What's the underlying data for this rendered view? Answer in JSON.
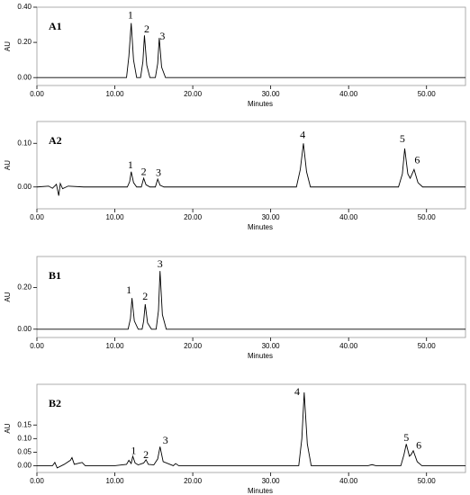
{
  "chart_data": [
    {
      "type": "line",
      "panel_label": "A1",
      "xlabel": "Minutes",
      "ylabel": "AU",
      "color": "#000000",
      "xlim": [
        0,
        55
      ],
      "ylim": [
        -0.045,
        0.4
      ],
      "xticks": [
        {
          "value": 0,
          "label": "0.00"
        },
        {
          "value": 10,
          "label": "10.00"
        },
        {
          "value": 20,
          "label": "20.00"
        },
        {
          "value": 30,
          "label": "30.00"
        },
        {
          "value": 40,
          "label": "40.00"
        },
        {
          "value": 50,
          "label": "50.00"
        }
      ],
      "yticks": [
        {
          "value": 0,
          "label": "0.00"
        },
        {
          "value": 0.2,
          "label": "0.20"
        },
        {
          "value": 0.4,
          "label": "0.40"
        }
      ],
      "x": [
        0,
        11.5,
        11.8,
        12.1,
        12.4,
        12.8,
        13.3,
        13.6,
        13.8,
        14.1,
        14.5,
        15.2,
        15.5,
        15.7,
        16.0,
        16.5,
        55
      ],
      "values": [
        0,
        0,
        0.12,
        0.31,
        0.1,
        0,
        0,
        0.09,
        0.24,
        0.07,
        0,
        0,
        0.08,
        0.225,
        0.06,
        0,
        0
      ],
      "annotations": [
        {
          "text": "1",
          "x": 12.0,
          "y": 0.35
        },
        {
          "text": "2",
          "x": 14.1,
          "y": 0.27
        },
        {
          "text": "3",
          "x": 16.1,
          "y": 0.23
        }
      ]
    },
    {
      "type": "line",
      "panel_label": "A2",
      "xlabel": "Minutes",
      "ylabel": "AU",
      "color": "#000000",
      "xlim": [
        0,
        55
      ],
      "ylim": [
        -0.05,
        0.15
      ],
      "xticks": [
        {
          "value": 0,
          "label": "0.00"
        },
        {
          "value": 10,
          "label": "10.00"
        },
        {
          "value": 20,
          "label": "20.00"
        },
        {
          "value": 30,
          "label": "30.00"
        },
        {
          "value": 40,
          "label": "40.00"
        },
        {
          "value": 50,
          "label": "50.00"
        }
      ],
      "yticks": [
        {
          "value": 0,
          "label": "0.00"
        },
        {
          "value": 0.1,
          "label": "0.10"
        }
      ],
      "x": [
        0,
        1.5,
        2.0,
        2.5,
        2.8,
        3.0,
        3.3,
        4,
        6,
        11.6,
        11.9,
        12.1,
        12.4,
        12.8,
        13.4,
        13.7,
        14.0,
        14.5,
        15.2,
        15.5,
        15.8,
        16.3,
        19,
        33.3,
        33.8,
        34.2,
        34.6,
        35.1,
        46.4,
        46.9,
        47.2,
        47.6,
        47.9,
        48.4,
        48.9,
        49.5,
        55
      ],
      "values": [
        0,
        0.002,
        -0.003,
        0.006,
        -0.02,
        0.008,
        -0.004,
        0.002,
        0,
        0,
        0.012,
        0.035,
        0.01,
        0,
        0,
        0.02,
        0.005,
        0,
        0,
        0.018,
        0.004,
        0,
        0,
        0,
        0.04,
        0.1,
        0.035,
        0,
        0,
        0.03,
        0.088,
        0.03,
        0.02,
        0.04,
        0.01,
        0,
        0
      ],
      "annotations": [
        {
          "text": "1",
          "x": 12.0,
          "y": 0.048
        },
        {
          "text": "2",
          "x": 13.7,
          "y": 0.033
        },
        {
          "text": "3",
          "x": 15.6,
          "y": 0.031
        },
        {
          "text": "4",
          "x": 34.1,
          "y": 0.118
        },
        {
          "text": "5",
          "x": 46.9,
          "y": 0.108
        },
        {
          "text": "6",
          "x": 48.8,
          "y": 0.06
        }
      ]
    },
    {
      "type": "line",
      "panel_label": "B1",
      "xlabel": "Minutes",
      "ylabel": "AU",
      "color": "#000000",
      "xlim": [
        0,
        55
      ],
      "ylim": [
        -0.04,
        0.35
      ],
      "xticks": [
        {
          "value": 0,
          "label": "0.00"
        },
        {
          "value": 10,
          "label": "10.00"
        },
        {
          "value": 20,
          "label": "20.00"
        },
        {
          "value": 30,
          "label": "30.00"
        },
        {
          "value": 40,
          "label": "40.00"
        },
        {
          "value": 50,
          "label": "50.00"
        }
      ],
      "yticks": [
        {
          "value": 0,
          "label": "0.00"
        },
        {
          "value": 0.2,
          "label": "0.20"
        }
      ],
      "x": [
        0,
        11.7,
        12.0,
        12.2,
        12.5,
        13.0,
        13.5,
        13.7,
        13.9,
        14.2,
        14.7,
        15.3,
        15.6,
        15.8,
        16.1,
        16.6,
        55
      ],
      "values": [
        0,
        0,
        0.05,
        0.15,
        0.04,
        0,
        0,
        0.04,
        0.12,
        0.03,
        0,
        0,
        0.09,
        0.28,
        0.07,
        0,
        0
      ],
      "annotations": [
        {
          "text": "1",
          "x": 11.8,
          "y": 0.185
        },
        {
          "text": "2",
          "x": 13.9,
          "y": 0.155
        },
        {
          "text": "3",
          "x": 15.8,
          "y": 0.31
        }
      ]
    },
    {
      "type": "line",
      "panel_label": "B2",
      "xlabel": "Minutes",
      "ylabel": "AU",
      "color": "#000000",
      "xlim": [
        0,
        55
      ],
      "ylim": [
        -0.025,
        0.3
      ],
      "xticks": [
        {
          "value": 0,
          "label": "0.00"
        },
        {
          "value": 10,
          "label": "10.00"
        },
        {
          "value": 20,
          "label": "20.00"
        },
        {
          "value": 30,
          "label": "30.00"
        },
        {
          "value": 40,
          "label": "40.00"
        },
        {
          "value": 50,
          "label": "50.00"
        }
      ],
      "yticks": [
        {
          "value": 0,
          "label": "0.00"
        },
        {
          "value": 0.05,
          "label": "0.05"
        },
        {
          "value": 0.1,
          "label": "0.10"
        },
        {
          "value": 0.15,
          "label": "0.15"
        }
      ],
      "x": [
        0,
        2,
        2.3,
        2.6,
        3.5,
        4.3,
        4.5,
        4.8,
        5.5,
        5.8,
        6.2,
        10,
        11.5,
        11.8,
        12.1,
        12.3,
        12.6,
        13,
        13.7,
        14.0,
        14.3,
        15.0,
        15.5,
        15.8,
        16.2,
        17.5,
        17.8,
        18.2,
        33.6,
        34.0,
        34.3,
        34.7,
        35.2,
        42.5,
        43,
        43.5,
        46.7,
        47.1,
        47.4,
        47.8,
        48.0,
        48.3,
        48.8,
        49.4,
        55
      ],
      "values": [
        0,
        0,
        0.012,
        -0.008,
        0.005,
        0.02,
        0.03,
        0.005,
        0.01,
        0.012,
        0,
        0,
        0.005,
        0.02,
        0.008,
        0.035,
        0.01,
        0.003,
        0.01,
        0.022,
        0.005,
        0.003,
        0.025,
        0.07,
        0.015,
        0,
        0.008,
        0,
        0,
        0.1,
        0.27,
        0.08,
        0,
        0,
        0.004,
        0,
        0,
        0.04,
        0.08,
        0.035,
        0.04,
        0.055,
        0.015,
        0,
        0
      ],
      "annotations": [
        {
          "text": "1",
          "x": 12.4,
          "y": 0.052
        },
        {
          "text": "2",
          "x": 14.0,
          "y": 0.037
        },
        {
          "text": "3",
          "x": 16.5,
          "y": 0.09
        },
        {
          "text": "4",
          "x": 33.4,
          "y": 0.27
        },
        {
          "text": "5",
          "x": 47.4,
          "y": 0.1
        },
        {
          "text": "6",
          "x": 49.0,
          "y": 0.072
        }
      ]
    }
  ]
}
